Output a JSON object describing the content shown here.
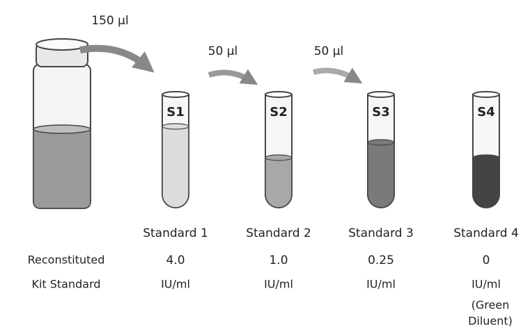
{
  "transfers": [
    "150 µl",
    "50 µl",
    "50 µl"
  ],
  "row_labels": [
    "Reconstituted",
    "Kit Standard"
  ],
  "tubes": [
    {
      "label": "S1",
      "name": "Standard 1",
      "concentration": "4.0",
      "unit": "IU/ml"
    },
    {
      "label": "S2",
      "name": "Standard 2",
      "concentration": "1.0",
      "unit": "IU/ml"
    },
    {
      "label": "S3",
      "name": "Standard 3",
      "concentration": "0.25",
      "unit": "IU/ml"
    },
    {
      "label": "S4",
      "name": "Standard 4",
      "concentration": "0",
      "unit": "IU/ml",
      "note": [
        "(Green",
        "Diluent)"
      ]
    }
  ]
}
